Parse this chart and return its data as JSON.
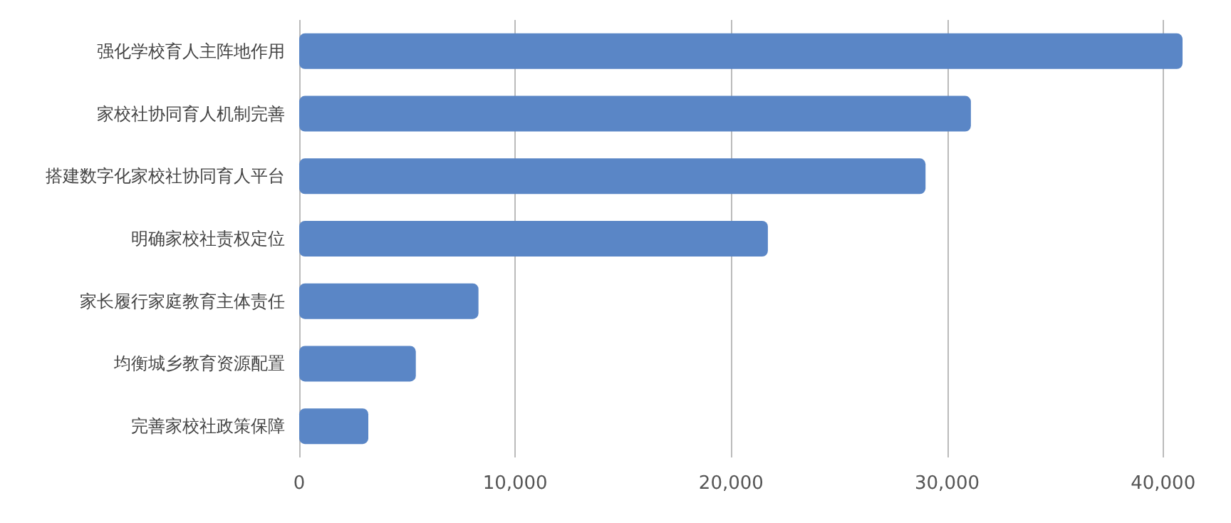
{
  "chart_data": {
    "type": "bar",
    "orientation": "horizontal",
    "categories": [
      "强化学校育人主阵地作用",
      "家校社协同育人机制完善",
      "搭建数字化家校社协同育人平台",
      "明确家校社责权定位",
      "家长履行家庭教育主体责任",
      "均衡城乡教育资源配置",
      "完善家校社政策保障"
    ],
    "values": [
      40900,
      31100,
      29000,
      21700,
      8300,
      5400,
      3200
    ],
    "color": "#5a86c6",
    "xlim": [
      0,
      40900
    ],
    "xticks": [
      0,
      {
        "value": 10000,
        "label": "10,000"
      },
      {
        "value": 20000,
        "label": "20,000"
      },
      {
        "value": 30000,
        "label": "30,000"
      },
      {
        "value": 40000,
        "label": "40,000"
      }
    ],
    "grid": "x"
  }
}
